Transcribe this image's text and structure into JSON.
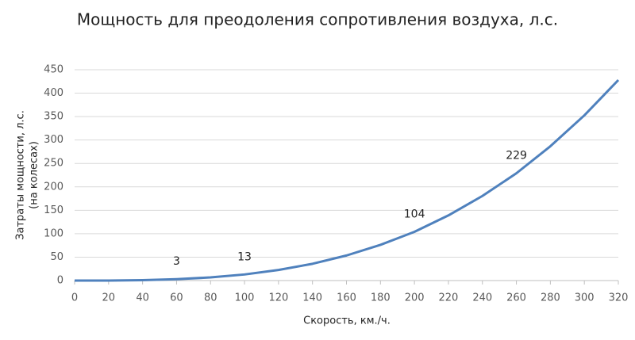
{
  "chart_data": {
    "type": "line",
    "title": "Мощность для преодоления сопротивления воздуха, л.с.",
    "y_label": [
      "Затраты мощности, л.с.",
      "(на колесах)"
    ],
    "x_label": "Скорость, км./ч.",
    "x": [
      0,
      20,
      40,
      60,
      80,
      100,
      120,
      140,
      160,
      180,
      200,
      220,
      240,
      260,
      280,
      300,
      320
    ],
    "series": [
      {
        "color": "#4f81bd",
        "values": [
          0,
          0.1,
          0.8,
          3,
          6.7,
          13,
          22.6,
          35.8,
          53.5,
          76.2,
          104,
          139.1,
          180.6,
          229,
          286.7,
          352.6,
          428
        ],
        "value_labels": [
          null,
          null,
          null,
          "3",
          null,
          "13",
          null,
          null,
          null,
          null,
          "104",
          null,
          null,
          "229",
          null,
          null,
          null
        ]
      }
    ],
    "xlim": [
      0,
      320
    ],
    "xticks": [
      0,
      20,
      40,
      60,
      80,
      100,
      120,
      140,
      160,
      180,
      200,
      220,
      240,
      260,
      280,
      300,
      320
    ],
    "ylim": [
      0,
      450
    ],
    "yticks": [
      0,
      50,
      100,
      150,
      200,
      250,
      300,
      350,
      400,
      450
    ],
    "grid": true
  }
}
